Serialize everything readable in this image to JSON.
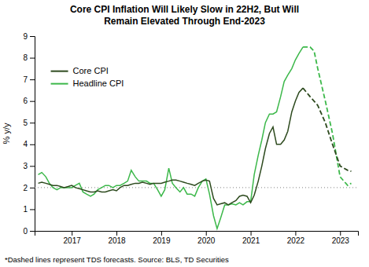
{
  "chart_data": {
    "type": "line",
    "title": "Core CPI Inflation Will Likely Slow in 22H2, But Will\nRemain Elevated Through End-2023",
    "ylabel": "% y/y",
    "footnote": "*Dashed lines represent TDS forecasts. Source: BLS, TD Securities",
    "xlim": [
      2016.17,
      2023.4
    ],
    "xticks": [
      2017,
      2018,
      2019,
      2020,
      2021,
      2022,
      2023
    ],
    "ylim": [
      0,
      9
    ],
    "yticks": [
      0,
      1,
      2,
      3,
      4,
      5,
      6,
      7,
      8,
      9
    ],
    "reference_line": 2.0,
    "grid": false,
    "legend": "upper left",
    "series": [
      {
        "name": "Core CPI",
        "color": "#2d4a1e",
        "line_style": "solid",
        "x": [
          2016.25,
          2016.33,
          2016.42,
          2016.5,
          2016.58,
          2016.67,
          2016.75,
          2016.83,
          2016.92,
          2017.0,
          2017.08,
          2017.17,
          2017.25,
          2017.33,
          2017.42,
          2017.5,
          2017.58,
          2017.67,
          2017.75,
          2017.83,
          2017.92,
          2018.0,
          2018.08,
          2018.17,
          2018.25,
          2018.33,
          2018.42,
          2018.5,
          2018.58,
          2018.67,
          2018.75,
          2018.83,
          2018.92,
          2019.0,
          2019.08,
          2019.17,
          2019.25,
          2019.33,
          2019.42,
          2019.5,
          2019.58,
          2019.67,
          2019.75,
          2019.83,
          2019.92,
          2020.0,
          2020.08,
          2020.17,
          2020.25,
          2020.33,
          2020.42,
          2020.5,
          2020.58,
          2020.67,
          2020.75,
          2020.83,
          2020.92,
          2021.0,
          2021.08,
          2021.17,
          2021.25,
          2021.33,
          2021.42,
          2021.5,
          2021.58,
          2021.67,
          2021.75,
          2021.83,
          2021.92,
          2022.0,
          2022.08,
          2022.17
        ],
        "values": [
          2.2,
          2.25,
          2.2,
          2.15,
          2.1,
          2.1,
          2.05,
          2.0,
          2.05,
          2.1,
          2.0,
          1.95,
          1.9,
          1.85,
          1.8,
          1.8,
          1.85,
          1.8,
          1.8,
          1.85,
          1.9,
          1.85,
          2.0,
          2.1,
          2.1,
          2.15,
          2.2,
          2.2,
          2.25,
          2.2,
          2.15,
          2.2,
          2.2,
          2.2,
          2.25,
          2.3,
          2.35,
          2.35,
          2.3,
          2.25,
          2.2,
          2.15,
          2.1,
          2.2,
          2.3,
          2.35,
          2.3,
          1.5,
          1.2,
          1.25,
          1.3,
          1.2,
          1.3,
          1.4,
          1.6,
          1.65,
          1.6,
          1.3,
          1.65,
          2.3,
          3.0,
          3.8,
          4.5,
          4.8,
          4.0,
          4.0,
          4.2,
          4.6,
          5.5,
          6.0,
          6.4,
          6.6
        ]
      },
      {
        "color": "#2d4a1e",
        "line_style": "dashed",
        "x": [
          2022.17,
          2022.33,
          2022.5,
          2022.67,
          2022.83,
          2023.0,
          2023.17,
          2023.25
        ],
        "values": [
          6.6,
          6.2,
          5.8,
          5.0,
          4.0,
          3.0,
          2.8,
          2.75
        ]
      },
      {
        "name": "Headline CPI",
        "color": "#3cb84a",
        "line_style": "solid",
        "x": [
          2016.25,
          2016.33,
          2016.42,
          2016.5,
          2016.58,
          2016.67,
          2016.75,
          2016.83,
          2016.92,
          2017.0,
          2017.08,
          2017.17,
          2017.25,
          2017.33,
          2017.42,
          2017.5,
          2017.58,
          2017.67,
          2017.75,
          2017.83,
          2017.92,
          2018.0,
          2018.08,
          2018.17,
          2018.25,
          2018.33,
          2018.42,
          2018.5,
          2018.58,
          2018.67,
          2018.75,
          2018.83,
          2018.92,
          2019.0,
          2019.08,
          2019.17,
          2019.25,
          2019.33,
          2019.42,
          2019.5,
          2019.58,
          2019.67,
          2019.75,
          2019.83,
          2019.92,
          2020.0,
          2020.08,
          2020.17,
          2020.25,
          2020.33,
          2020.42,
          2020.5,
          2020.58,
          2020.67,
          2020.75,
          2020.83,
          2020.92,
          2021.0,
          2021.08,
          2021.17,
          2021.25,
          2021.33,
          2021.42,
          2021.5,
          2021.58,
          2021.67,
          2021.75,
          2021.83,
          2021.92,
          2022.0,
          2022.08,
          2022.17
        ],
        "values": [
          2.6,
          2.7,
          2.5,
          2.2,
          2.0,
          1.9,
          2.0,
          2.0,
          2.0,
          2.0,
          2.1,
          2.2,
          1.8,
          1.7,
          1.6,
          1.7,
          1.9,
          2.0,
          2.1,
          2.1,
          2.0,
          2.1,
          2.1,
          2.2,
          2.3,
          2.8,
          2.5,
          2.3,
          2.3,
          2.3,
          2.2,
          2.2,
          1.9,
          1.6,
          1.9,
          2.9,
          2.2,
          2.0,
          1.8,
          2.0,
          1.7,
          1.7,
          1.6,
          2.0,
          2.3,
          2.4,
          1.7,
          0.7,
          0.1,
          0.6,
          1.2,
          1.2,
          1.25,
          1.2,
          1.3,
          1.2,
          1.35,
          1.35,
          2.6,
          3.5,
          4.2,
          5.0,
          5.4,
          5.4,
          5.5,
          6.2,
          6.9,
          7.2,
          7.5,
          7.9,
          8.2,
          8.5
        ]
      },
      {
        "color": "#3cb84a",
        "line_style": "dashed",
        "x": [
          2022.17,
          2022.33,
          2022.42,
          2022.5,
          2022.67,
          2022.83,
          2023.0,
          2023.17,
          2023.25
        ],
        "values": [
          8.5,
          8.5,
          8.3,
          7.5,
          6.0,
          4.5,
          2.5,
          2.1,
          2.2
        ]
      }
    ]
  }
}
